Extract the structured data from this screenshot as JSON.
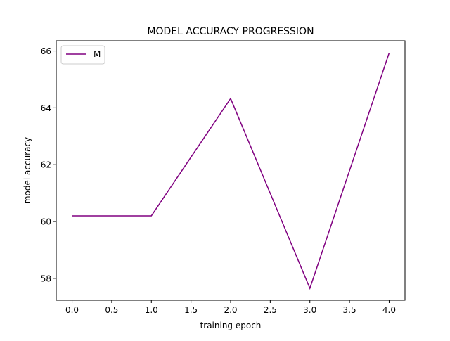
{
  "chart_data": {
    "type": "line",
    "title": "MODEL ACCURACY PROGRESSION",
    "xlabel": "training epoch",
    "ylabel": "model accuracy",
    "xlim": [
      -0.2,
      4.2
    ],
    "ylim": [
      57.23,
      66.36
    ],
    "xticks": [
      0.0,
      0.5,
      1.0,
      1.5,
      2.0,
      2.5,
      3.0,
      3.5,
      4.0
    ],
    "xtick_labels": [
      "0.0",
      "0.5",
      "1.0",
      "1.5",
      "2.0",
      "2.5",
      "3.0",
      "3.5",
      "4.0"
    ],
    "yticks": [
      58,
      60,
      62,
      64,
      66
    ],
    "ytick_labels": [
      "58",
      "60",
      "62",
      "64",
      "66"
    ],
    "grid": false,
    "legend_position": "upper-left",
    "series": [
      {
        "name": "M",
        "color": "#800080",
        "x": [
          0,
          1,
          2,
          3,
          4
        ],
        "values": [
          60.2,
          60.2,
          64.33,
          57.65,
          65.93
        ]
      }
    ]
  }
}
